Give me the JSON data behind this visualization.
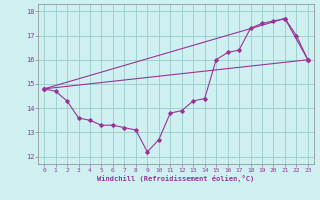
{
  "xlabel": "Windchill (Refroidissement éolien,°C)",
  "xlim": [
    -0.5,
    23.5
  ],
  "ylim": [
    11.7,
    18.3
  ],
  "yticks": [
    12,
    13,
    14,
    15,
    16,
    17,
    18
  ],
  "xticks": [
    0,
    1,
    2,
    3,
    4,
    5,
    6,
    7,
    8,
    9,
    10,
    11,
    12,
    13,
    14,
    15,
    16,
    17,
    18,
    19,
    20,
    21,
    22,
    23
  ],
  "background_color": "#cff0f0",
  "line_color": "#993399",
  "grid_color": "#99cccc",
  "series1_x": [
    0,
    1,
    2,
    3,
    4,
    5,
    6,
    7,
    8,
    9,
    10,
    11,
    12,
    13,
    14,
    15,
    16,
    17,
    18,
    19,
    20,
    21,
    22,
    23
  ],
  "series1_y": [
    14.8,
    14.7,
    14.3,
    13.6,
    13.5,
    13.3,
    13.3,
    13.2,
    13.1,
    12.2,
    12.7,
    13.8,
    13.9,
    14.3,
    14.4,
    16.0,
    16.3,
    16.4,
    17.3,
    17.5,
    17.6,
    17.7,
    17.0,
    16.0
  ],
  "series2_x": [
    0,
    23
  ],
  "series2_y": [
    14.8,
    16.0
  ],
  "series3_x": [
    0,
    21,
    23
  ],
  "series3_y": [
    14.8,
    17.7,
    16.0
  ]
}
